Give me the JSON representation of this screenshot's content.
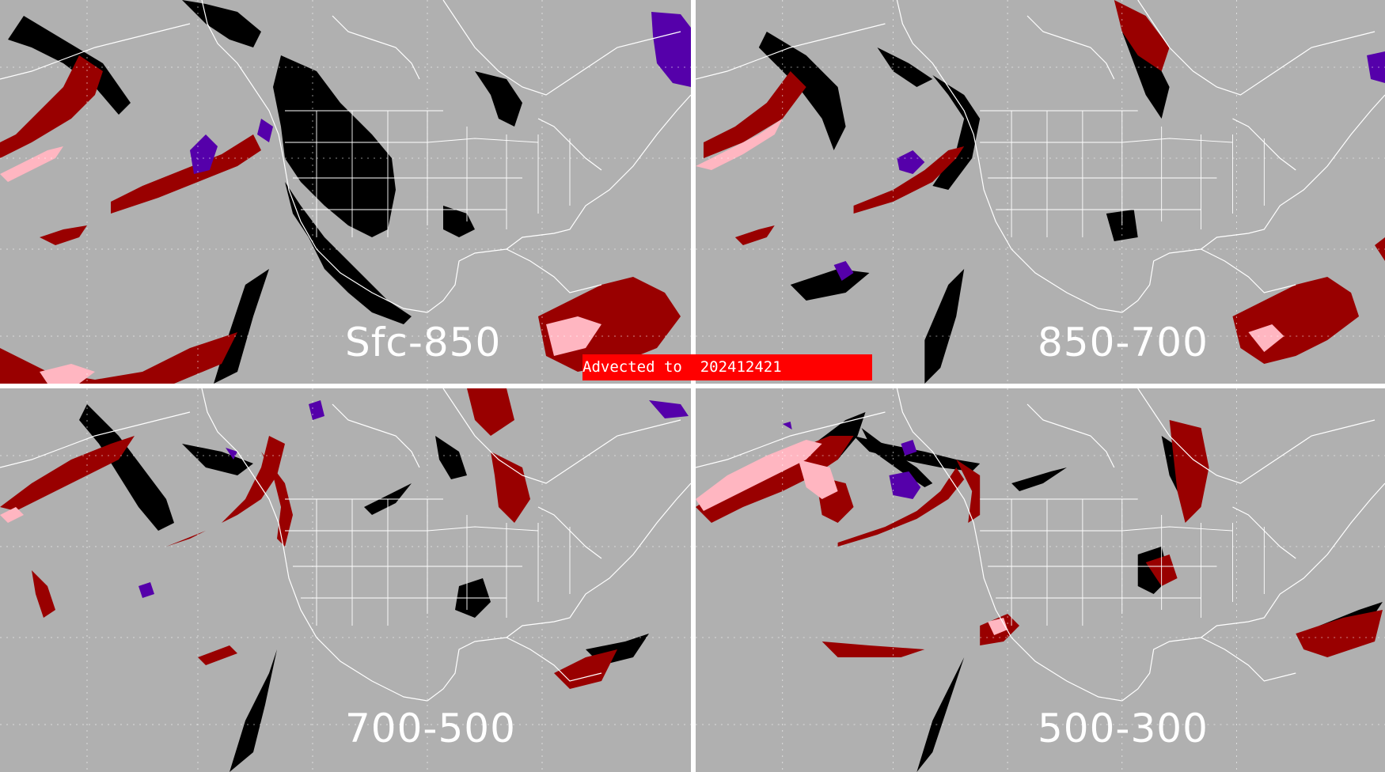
{
  "banner": {
    "text": "Advected to  202412421"
  },
  "panels": [
    {
      "id": "tl",
      "label": "Sfc-850"
    },
    {
      "id": "tr",
      "label": "850-700"
    },
    {
      "id": "bl",
      "label": "700-500"
    },
    {
      "id": "br",
      "label": "500-300"
    }
  ],
  "colors": {
    "background": "#b0b0b0",
    "coastline": "#ffffff",
    "black_class": "#000000",
    "dark_red_class": "#990000",
    "pink_class": "#ffb6c1",
    "purple_class": "#5500aa",
    "banner": "#ff0000"
  }
}
